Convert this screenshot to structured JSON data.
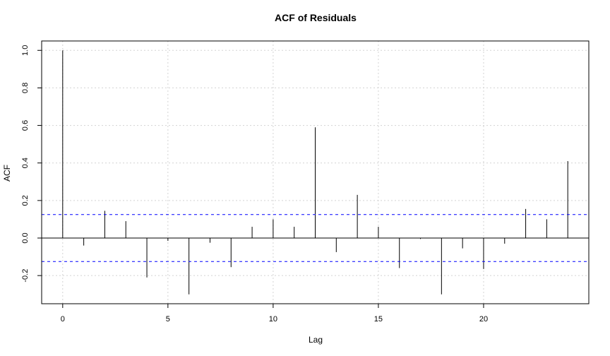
{
  "chart_data": {
    "type": "bar",
    "title": "ACF of Residuals",
    "xlabel": "Lag",
    "ylabel": "ACF",
    "x": [
      0,
      1,
      2,
      3,
      4,
      5,
      6,
      7,
      8,
      9,
      10,
      11,
      12,
      13,
      14,
      15,
      16,
      17,
      18,
      19,
      20,
      21,
      22,
      23,
      24
    ],
    "values": [
      1.0,
      -0.04,
      0.145,
      0.09,
      -0.21,
      -0.015,
      -0.3,
      -0.025,
      -0.155,
      0.06,
      0.1,
      0.06,
      0.59,
      -0.075,
      0.23,
      0.06,
      -0.16,
      -0.005,
      -0.3,
      -0.055,
      -0.165,
      -0.03,
      0.155,
      0.1,
      0.41
    ],
    "confidence_bound": 0.125,
    "xlim": [
      -1,
      25
    ],
    "ylim": [
      -0.35,
      1.05
    ],
    "x_ticks": [
      0,
      5,
      10,
      15,
      20
    ],
    "x_tick_labels": [
      "0",
      "5",
      "10",
      "15",
      "20"
    ],
    "y_ticks": [
      -0.2,
      0.0,
      0.2,
      0.4,
      0.6,
      0.8,
      1.0
    ],
    "y_tick_labels": [
      "-0.2",
      "0.0",
      "0.2",
      "0.4",
      "0.6",
      "0.8",
      "1.0"
    ],
    "grid": true,
    "colors": {
      "bars": "#000000",
      "confidence_lines": "#0000ff",
      "grid": "#d3d3d3",
      "zero_line": "#000000"
    }
  }
}
